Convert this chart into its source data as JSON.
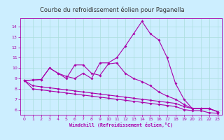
{
  "title": "Courbe du refroidissement éolien pour Paganella",
  "xlabel": "Windchill (Refroidissement éolien,°C)",
  "bg_color": "#cceeff",
  "title_bg": "#ffffff",
  "grid_color": "#aadddd",
  "line_color": "#aa00aa",
  "xlim": [
    -0.5,
    23.5
  ],
  "ylim": [
    5.5,
    14.8
  ],
  "yticks": [
    6,
    7,
    8,
    9,
    10,
    11,
    12,
    13,
    14
  ],
  "xticks": [
    0,
    1,
    2,
    3,
    4,
    5,
    6,
    7,
    8,
    9,
    10,
    11,
    12,
    13,
    14,
    15,
    16,
    17,
    18,
    19,
    20,
    21,
    22,
    23
  ],
  "line1_x": [
    0,
    1,
    2,
    3,
    4,
    5,
    6,
    7,
    8,
    9,
    10,
    11,
    12,
    13,
    14,
    15,
    16,
    17,
    18,
    19,
    20,
    21,
    22,
    23
  ],
  "line1_y": [
    8.8,
    8.85,
    8.9,
    10.0,
    9.5,
    9.2,
    9.0,
    9.5,
    9.0,
    10.5,
    10.5,
    11.0,
    12.1,
    13.3,
    14.5,
    13.3,
    12.7,
    11.0,
    8.5,
    7.0,
    6.1,
    6.1,
    6.1,
    5.8
  ],
  "line2_x": [
    0,
    1,
    2,
    3,
    4,
    5,
    6,
    7,
    8,
    9,
    10,
    11,
    12,
    13,
    14,
    15,
    16,
    17,
    18,
    19,
    20,
    21,
    22,
    23
  ],
  "line2_y": [
    8.8,
    8.85,
    8.9,
    10.0,
    9.5,
    9.0,
    10.3,
    10.3,
    9.5,
    9.3,
    10.4,
    10.5,
    9.5,
    9.0,
    8.7,
    8.3,
    7.7,
    7.3,
    7.0,
    6.5,
    6.1,
    6.1,
    6.1,
    5.8
  ],
  "line3_x": [
    0,
    1,
    2,
    3,
    4,
    5,
    6,
    7,
    8,
    9,
    10,
    11,
    12,
    13,
    14,
    15,
    16,
    17,
    18,
    19,
    20,
    21,
    22,
    23
  ],
  "line3_y": [
    8.8,
    8.3,
    8.2,
    8.1,
    8.0,
    7.9,
    7.8,
    7.7,
    7.6,
    7.5,
    7.4,
    7.3,
    7.2,
    7.1,
    7.0,
    6.9,
    6.8,
    6.7,
    6.6,
    6.3,
    6.1,
    6.1,
    6.1,
    5.8
  ],
  "line4_x": [
    0,
    1,
    2,
    3,
    4,
    5,
    6,
    7,
    8,
    9,
    10,
    11,
    12,
    13,
    14,
    15,
    16,
    17,
    18,
    19,
    20,
    21,
    22,
    23
  ],
  "line4_y": [
    8.8,
    8.0,
    7.9,
    7.8,
    7.7,
    7.6,
    7.5,
    7.4,
    7.3,
    7.2,
    7.1,
    7.0,
    6.9,
    6.8,
    6.7,
    6.6,
    6.5,
    6.4,
    6.3,
    6.0,
    5.9,
    5.9,
    5.7,
    5.65
  ]
}
